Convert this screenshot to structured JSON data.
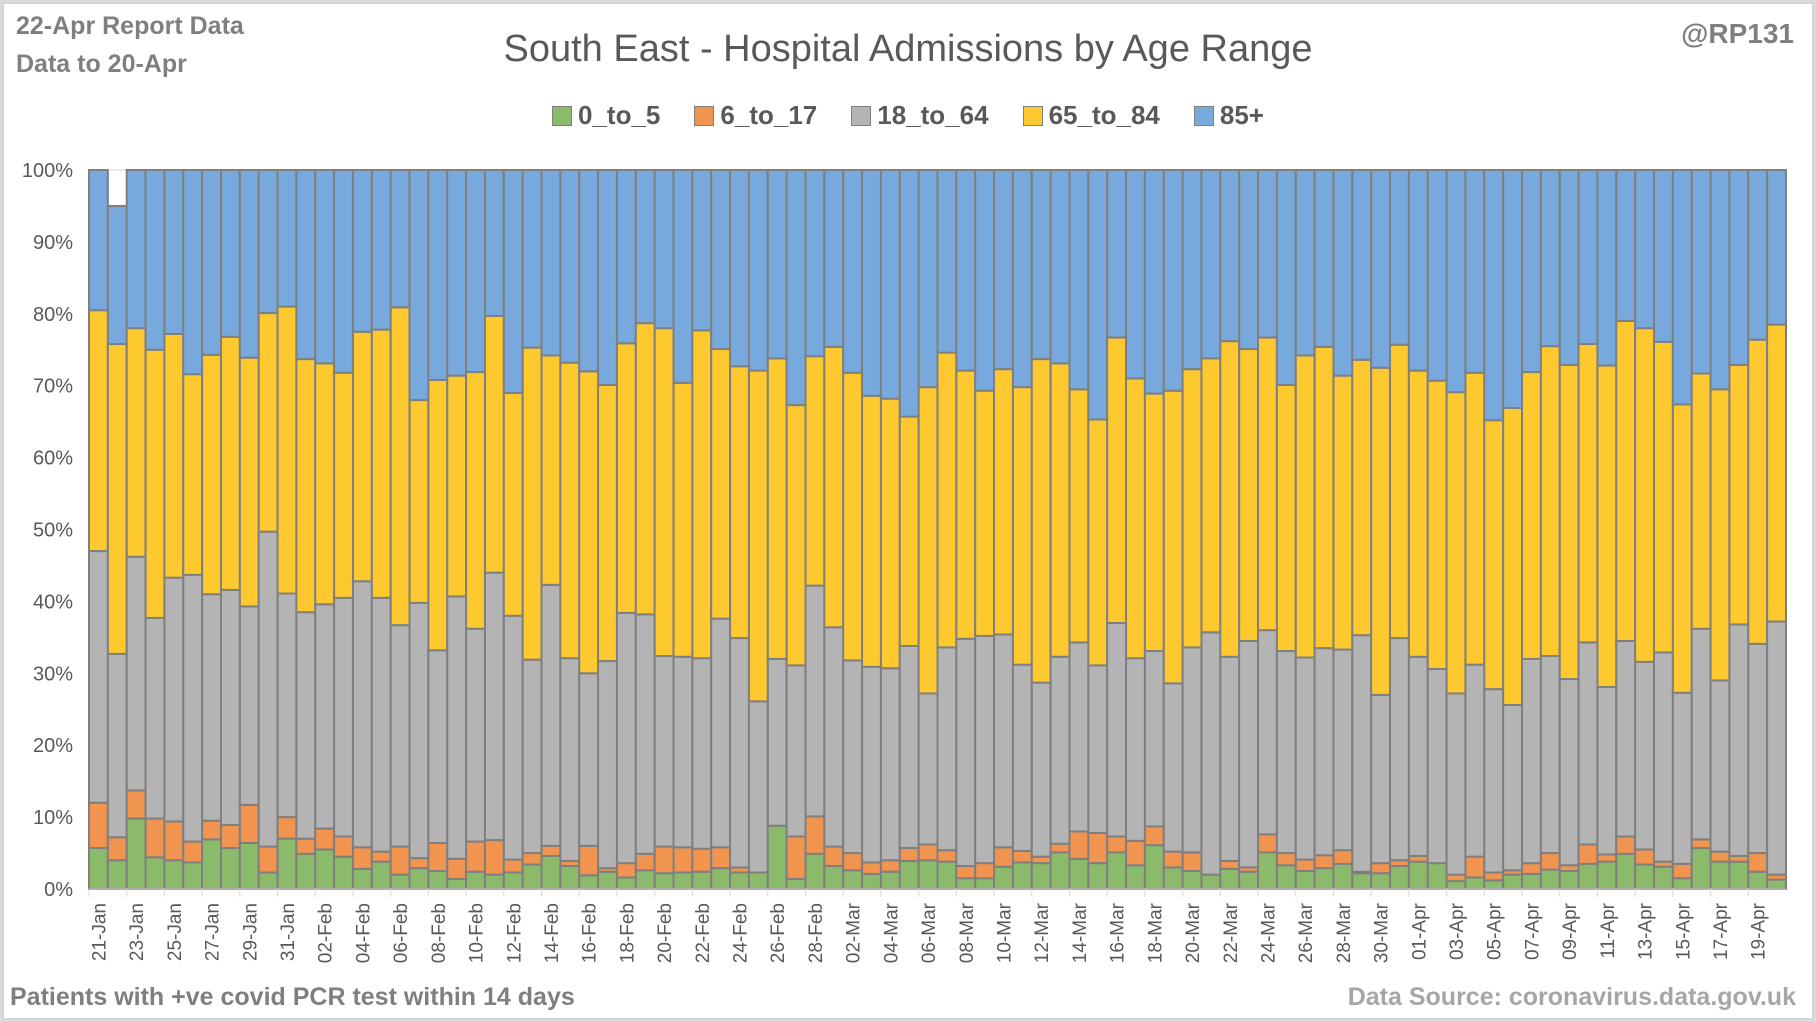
{
  "header": {
    "report_line1": "22-Apr Report Data",
    "report_line2": "Data to 20-Apr",
    "handle": "@RP131"
  },
  "footer": {
    "note": "Patients with  +ve covid PCR test within 14 days",
    "source": "Data Source: coronavirus.data.gov.uk"
  },
  "chart_data": {
    "type": "bar",
    "stacked": "100%",
    "title": "South East - Hospital Admissions by Age Range",
    "xlabel": "",
    "ylabel": "",
    "ylim": [
      0,
      100
    ],
    "yticks": [
      "0%",
      "10%",
      "20%",
      "30%",
      "40%",
      "50%",
      "60%",
      "70%",
      "80%",
      "90%",
      "100%"
    ],
    "legend_position": "top",
    "grid": true,
    "categories": [
      "21-Jan",
      "22-Jan",
      "23-Jan",
      "24-Jan",
      "25-Jan",
      "26-Jan",
      "27-Jan",
      "28-Jan",
      "29-Jan",
      "30-Jan",
      "31-Jan",
      "01-Feb",
      "02-Feb",
      "03-Feb",
      "04-Feb",
      "05-Feb",
      "06-Feb",
      "07-Feb",
      "08-Feb",
      "09-Feb",
      "10-Feb",
      "11-Feb",
      "12-Feb",
      "13-Feb",
      "14-Feb",
      "15-Feb",
      "16-Feb",
      "17-Feb",
      "18-Feb",
      "19-Feb",
      "20-Feb",
      "21-Feb",
      "22-Feb",
      "23-Feb",
      "24-Feb",
      "25-Feb",
      "26-Feb",
      "27-Feb",
      "28-Feb",
      "01-Mar",
      "02-Mar",
      "03-Mar",
      "04-Mar",
      "05-Mar",
      "06-Mar",
      "07-Mar",
      "08-Mar",
      "09-Mar",
      "10-Mar",
      "11-Mar",
      "12-Mar",
      "13-Mar",
      "14-Mar",
      "15-Mar",
      "16-Mar",
      "17-Mar",
      "18-Mar",
      "19-Mar",
      "20-Mar",
      "21-Mar",
      "22-Mar",
      "23-Mar",
      "24-Mar",
      "25-Mar",
      "26-Mar",
      "27-Mar",
      "28-Mar",
      "29-Mar",
      "30-Mar",
      "31-Mar",
      "01-Apr",
      "02-Apr",
      "03-Apr",
      "04-Apr",
      "05-Apr",
      "06-Apr",
      "07-Apr",
      "08-Apr",
      "09-Apr",
      "10-Apr",
      "11-Apr",
      "12-Apr",
      "13-Apr",
      "14-Apr",
      "15-Apr",
      "16-Apr",
      "17-Apr",
      "18-Apr",
      "19-Apr",
      "20-Apr"
    ],
    "tick_label_every": 2,
    "cumulative_tops_note": "values are percentage shares per series; each bar sums to 100",
    "series": [
      {
        "name": "0_to_5",
        "color": "#8bbb6a",
        "values": [
          5.7,
          4,
          9.8,
          4.4,
          4,
          3.7,
          6.9,
          5.7,
          6.4,
          2.3,
          7,
          4.9,
          5.5,
          4.5,
          2.8,
          3.8,
          2,
          2.9,
          2.5,
          1.4,
          2.4,
          2,
          2.3,
          3.4,
          4.6,
          3.2,
          1.9,
          2.4,
          1.6,
          2.6,
          2.2,
          2.3,
          2.4,
          2.9,
          2.3,
          2.3,
          8.8,
          1.4,
          4.9,
          3.2,
          2.6,
          2.1,
          2.4,
          3.9,
          4,
          3.8,
          1.5,
          1.5,
          3.1,
          3.7,
          3.6,
          5.1,
          4.2,
          3.6,
          5.1,
          3.3,
          6.1,
          3,
          2.5,
          2,
          2.8,
          2.4,
          5.1,
          3.3,
          2.5,
          2.9,
          3.5,
          2.2,
          2.2,
          3.2,
          3.8,
          3.6,
          1.1,
          1.6,
          1.2,
          2,
          2.1,
          2.7,
          2.5,
          3.5,
          3.8,
          4.9,
          3.4,
          3.1,
          1.5,
          5.7,
          3.8,
          3.8,
          2.4,
          1.3
        ]
      },
      {
        "name": "6_to_17",
        "color": "#f09450",
        "values": [
          6.3,
          3.2,
          3.9,
          5.4,
          5.4,
          2.9,
          2.6,
          3.2,
          5.3,
          3.6,
          3,
          2.1,
          2.9,
          2.8,
          3,
          1.4,
          3.9,
          1.4,
          3.9,
          2.8,
          4.2,
          4.8,
          1.8,
          1.6,
          1.4,
          0.7,
          4.1,
          0.5,
          2,
          2.3,
          3.7,
          3.5,
          3.2,
          2.9,
          0.7,
          0,
          0,
          5.9,
          5.2,
          2.7,
          2.4,
          1.6,
          1.6,
          1.8,
          2.2,
          1.6,
          1.7,
          2.1,
          2.7,
          1.6,
          0.9,
          1.2,
          3.8,
          4.2,
          2.2,
          3.4,
          2.6,
          2.2,
          2.6,
          0,
          1.1,
          0.6,
          2.5,
          1.7,
          1.6,
          1.8,
          1.9,
          0.2,
          1.4,
          0.8,
          0.8,
          0,
          0.9,
          2.9,
          1.1,
          0.6,
          1.5,
          2.3,
          0.8,
          2.7,
          1,
          2.4,
          2.1,
          0.7,
          2,
          1.2,
          1.4,
          0.8,
          2.6,
          0.7
        ]
      },
      {
        "name": "18_to_64",
        "color": "#b4b4b4",
        "values": [
          35,
          25.5,
          32.5,
          27.9,
          33.9,
          37.1,
          31.5,
          32.7,
          27.6,
          43.8,
          31.1,
          31.5,
          31.2,
          33.2,
          37,
          35.3,
          30.8,
          35.5,
          26.8,
          36.5,
          29.6,
          37.2,
          33.9,
          26.9,
          36.3,
          28.2,
          24,
          28.8,
          34.8,
          33.3,
          26.5,
          26.5,
          26.5,
          31.8,
          31.9,
          23.8,
          23.2,
          23.8,
          32.1,
          30.5,
          26.8,
          27.2,
          26.7,
          28.1,
          21,
          28.2,
          31.6,
          31.6,
          29.6,
          25.9,
          24.2,
          26,
          26.3,
          23.3,
          29.7,
          25.4,
          24.4,
          23.4,
          28.5,
          33.7,
          28.4,
          31.5,
          28.4,
          28.1,
          28.1,
          28.8,
          27.9,
          32.9,
          23.4,
          30.9,
          27.7,
          27,
          25.2,
          26.7,
          25.5,
          23,
          28.4,
          27.4,
          25.9,
          28.1,
          23.3,
          27.2,
          26.1,
          29.1,
          23.8,
          29.3,
          23.8,
          32.2,
          29.1,
          35.2
        ]
      },
      {
        "name": "65_to_84",
        "color": "#fec92f",
        "values": [
          33.5,
          43.1,
          31.8,
          37.3,
          33.9,
          27.9,
          33.3,
          35.2,
          34.6,
          30.4,
          39.9,
          35.2,
          33.5,
          31.3,
          34.7,
          37.3,
          44.2,
          28.2,
          37.6,
          30.7,
          35.7,
          35.7,
          31,
          43.4,
          31.9,
          41.1,
          42,
          38.4,
          37.5,
          40.5,
          45.6,
          38.1,
          45.6,
          37.5,
          37.8,
          46,
          41.8,
          36.2,
          31.9,
          39,
          40,
          37.7,
          37.5,
          31.9,
          42.6,
          41,
          37.3,
          34.1,
          36.9,
          38.6,
          45,
          40.8,
          35.2,
          34.2,
          39.7,
          38.9,
          35.8,
          40.7,
          38.7,
          38.1,
          43.9,
          40.6,
          40.7,
          37,
          42,
          41.9,
          38.1,
          38.3,
          45.5,
          40.8,
          39.8,
          40.1,
          41.9,
          40.6,
          37.4,
          41.3,
          39.9,
          43.1,
          43.7,
          41.5,
          44.7,
          44.5,
          46.4,
          43.2,
          40.1,
          35.5,
          40.5,
          36.1,
          42.3,
          41.3
        ]
      },
      {
        "name": "85+",
        "color": "#77a9dc",
        "values": [
          19.5,
          19.2,
          22,
          25,
          22.8,
          28.4,
          25.7,
          23.2,
          26.1,
          19.9,
          19,
          26.3,
          26.9,
          28.2,
          22.5,
          22.2,
          19.1,
          32,
          29.2,
          28.6,
          28.1,
          20.3,
          31,
          24.7,
          25.8,
          26.8,
          28,
          29.9,
          24.1,
          21.3,
          22,
          29.6,
          22.3,
          24.9,
          27.3,
          27.9,
          26.2,
          32.7,
          25.9,
          24.6,
          28.2,
          31.4,
          31.8,
          34.3,
          30.2,
          25.4,
          27.9,
          30.7,
          27.7,
          30.2,
          26.3,
          26.9,
          30.5,
          34.7,
          23.3,
          29,
          31.1,
          30.7,
          27.7,
          26.2,
          23.8,
          24.9,
          23.3,
          29.9,
          25.8,
          24.6,
          28.6,
          26.4,
          27.5,
          24.3,
          27.9,
          29.3,
          30.9,
          28.2,
          34.8,
          33.1,
          28.1,
          24.5,
          27.1,
          24.2,
          27.2,
          21,
          22,
          23.9,
          32.6,
          28.3,
          30.5,
          27.1,
          23.6,
          21.5
        ]
      }
    ]
  }
}
